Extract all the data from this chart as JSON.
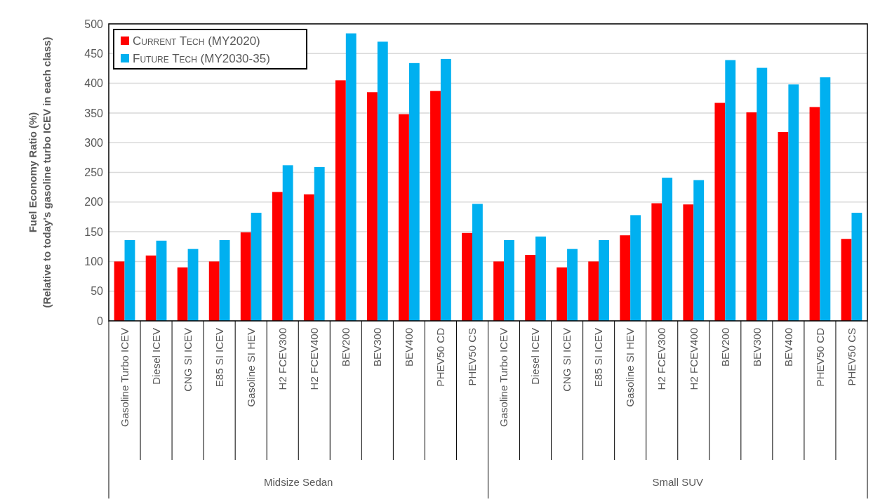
{
  "chart_data": {
    "type": "bar",
    "ylabel": "Fuel Economy Ratio (%)\n(Relative to today's gasoline turbo ICEV in each class)",
    "categories": [
      "Gasoline Turbo ICEV",
      "Diesel ICEV",
      "CNG SI ICEV",
      "E85 SI ICEV",
      "Gasoline SI HEV",
      "H2 FCEV300",
      "H2 FCEV400",
      "BEV200",
      "BEV300",
      "BEV400",
      "PHEV50 CD",
      "PHEV50 CS",
      "Gasoline Turbo ICEV",
      "Diesel ICEV",
      "CNG SI ICEV",
      "E85 SI ICEV",
      "Gasoline SI HEV",
      "H2 FCEV300",
      "H2 FCEV400",
      "BEV200",
      "BEV300",
      "BEV400",
      "PHEV50 CD",
      "PHEV50 CS"
    ],
    "series": [
      {
        "name": "Current Tech (MY2020)",
        "color": "#ff0000",
        "values": [
          100,
          110,
          90,
          100,
          149,
          217,
          213,
          405,
          385,
          348,
          387,
          148,
          100,
          111,
          90,
          100,
          144,
          198,
          196,
          367,
          351,
          318,
          360,
          138
        ]
      },
      {
        "name": "Future Tech (MY2030-35)",
        "color": "#00b0f0",
        "values": [
          136,
          135,
          121,
          136,
          182,
          262,
          259,
          484,
          470,
          434,
          441,
          197,
          136,
          142,
          121,
          136,
          178,
          241,
          237,
          439,
          426,
          398,
          410,
          182
        ]
      }
    ],
    "annotations": [
      "Midsize Sedan",
      "Small SUV"
    ],
    "ylim": [
      0,
      500
    ],
    "yticks": [
      0,
      50,
      100,
      150,
      200,
      250,
      300,
      350,
      400,
      450,
      500
    ],
    "grid": "y",
    "legend": "top left"
  }
}
